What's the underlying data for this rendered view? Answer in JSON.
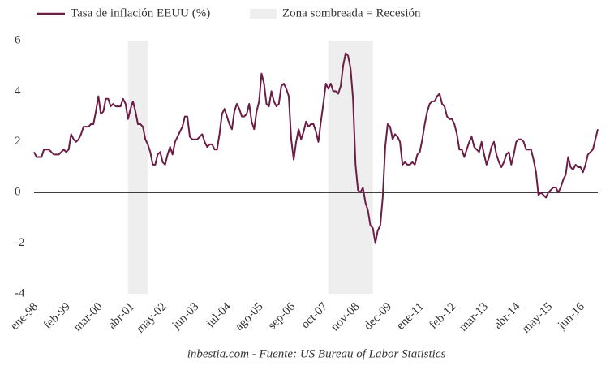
{
  "chart_data": {
    "type": "line",
    "source": "inbestia.com - Fuente: US Bureau of Labor Statistics",
    "shaded_label": "Zona sombreada = Recesión",
    "shade_color": "#eeeeee",
    "shaded_ranges": [
      [
        38,
        46
      ],
      [
        119,
        137
      ]
    ],
    "categories": [
      "ene-98",
      null,
      null,
      null,
      null,
      null,
      null,
      null,
      null,
      null,
      null,
      null,
      null,
      "feb-99",
      null,
      null,
      null,
      null,
      null,
      null,
      null,
      null,
      null,
      null,
      null,
      null,
      "mar-00",
      null,
      null,
      null,
      null,
      null,
      null,
      null,
      null,
      null,
      null,
      null,
      null,
      "abr-01",
      null,
      null,
      null,
      null,
      null,
      null,
      null,
      null,
      null,
      null,
      null,
      null,
      "may-02",
      null,
      null,
      null,
      null,
      null,
      null,
      null,
      null,
      null,
      null,
      null,
      null,
      "jun-03",
      null,
      null,
      null,
      null,
      null,
      null,
      null,
      null,
      null,
      null,
      null,
      null,
      "jul-04",
      null,
      null,
      null,
      null,
      null,
      null,
      null,
      null,
      null,
      null,
      null,
      null,
      "ago-05",
      null,
      null,
      null,
      null,
      null,
      null,
      null,
      null,
      null,
      null,
      null,
      null,
      "sep-06",
      null,
      null,
      null,
      null,
      null,
      null,
      null,
      null,
      null,
      null,
      null,
      null,
      "oct-07",
      null,
      null,
      null,
      null,
      null,
      null,
      null,
      null,
      null,
      null,
      null,
      null,
      "nov-08",
      null,
      null,
      null,
      null,
      null,
      null,
      null,
      null,
      null,
      null,
      null,
      null,
      "dec-09",
      null,
      null,
      null,
      null,
      null,
      null,
      null,
      null,
      null,
      null,
      null,
      null,
      "ene-11",
      null,
      null,
      null,
      null,
      null,
      null,
      null,
      null,
      null,
      null,
      null,
      null,
      "feb-12",
      null,
      null,
      null,
      null,
      null,
      null,
      null,
      null,
      null,
      null,
      null,
      null,
      "mar-13",
      null,
      null,
      null,
      null,
      null,
      null,
      null,
      null,
      null,
      null,
      null,
      null,
      "abr-14",
      null,
      null,
      null,
      null,
      null,
      null,
      null,
      null,
      null,
      null,
      null,
      null,
      "may-15",
      null,
      null,
      null,
      null,
      null,
      null,
      null,
      null,
      null,
      null,
      null,
      null,
      "jun-16",
      null,
      null,
      null,
      null,
      null,
      null,
      null
    ],
    "series": [
      {
        "name": "Tasa de inflación EEUU (%)",
        "color": "#6b1d45",
        "values": [
          1.6,
          1.4,
          1.4,
          1.4,
          1.7,
          1.7,
          1.7,
          1.6,
          1.5,
          1.5,
          1.5,
          1.6,
          1.7,
          1.6,
          1.7,
          2.3,
          2.1,
          2.0,
          2.1,
          2.3,
          2.6,
          2.6,
          2.6,
          2.7,
          2.7,
          3.2,
          3.8,
          3.1,
          3.2,
          3.7,
          3.7,
          3.4,
          3.5,
          3.4,
          3.4,
          3.4,
          3.7,
          3.5,
          2.9,
          3.3,
          3.6,
          3.2,
          2.7,
          2.7,
          2.6,
          2.1,
          1.9,
          1.6,
          1.1,
          1.1,
          1.5,
          1.6,
          1.2,
          1.1,
          1.5,
          1.8,
          1.5,
          2.0,
          2.2,
          2.4,
          2.6,
          3.0,
          3.0,
          2.2,
          2.1,
          2.1,
          2.1,
          2.2,
          2.3,
          2.0,
          1.8,
          1.9,
          1.9,
          1.7,
          1.7,
          2.3,
          3.1,
          3.3,
          3.0,
          2.7,
          2.5,
          3.2,
          3.5,
          3.3,
          3.0,
          3.0,
          3.1,
          3.5,
          2.8,
          2.5,
          3.2,
          3.6,
          4.7,
          4.3,
          3.5,
          3.4,
          4.0,
          3.6,
          3.4,
          3.5,
          4.2,
          4.3,
          4.1,
          3.8,
          2.1,
          1.3,
          2.0,
          2.5,
          2.1,
          2.4,
          2.8,
          2.6,
          2.7,
          2.7,
          2.4,
          2.0,
          2.8,
          3.5,
          4.3,
          4.1,
          4.3,
          4.0,
          4.0,
          3.9,
          4.2,
          5.0,
          5.5,
          5.4,
          4.9,
          3.7,
          1.1,
          0.1,
          0.0,
          0.2,
          -0.4,
          -0.7,
          -1.3,
          -1.4,
          -2.0,
          -1.5,
          -1.3,
          -0.2,
          1.8,
          2.7,
          2.6,
          2.1,
          2.3,
          2.2,
          2.0,
          1.1,
          1.2,
          1.1,
          1.1,
          1.2,
          1.1,
          1.5,
          1.6,
          2.1,
          2.7,
          3.2,
          3.5,
          3.6,
          3.6,
          3.8,
          3.9,
          3.5,
          3.4,
          3.0,
          2.9,
          2.9,
          2.7,
          2.3,
          1.7,
          1.7,
          1.4,
          1.7,
          2.0,
          2.2,
          1.8,
          1.7,
          1.6,
          2.0,
          1.5,
          1.1,
          1.4,
          1.8,
          2.0,
          1.5,
          1.2,
          1.0,
          1.2,
          1.5,
          1.6,
          1.1,
          1.5,
          2.0,
          2.1,
          2.1,
          2.0,
          1.7,
          1.7,
          1.7,
          1.3,
          0.8,
          -0.1,
          0.0,
          -0.1,
          -0.2,
          0.0,
          0.1,
          0.2,
          0.2,
          0.0,
          0.2,
          0.5,
          0.7,
          1.4,
          1.0,
          0.9,
          1.1,
          1.0,
          1.0,
          0.8,
          1.1,
          1.5,
          1.6,
          1.7,
          2.1,
          2.5
        ]
      }
    ],
    "ylim": [
      -4,
      6
    ],
    "yticks": [
      -4,
      -2,
      0,
      2,
      4,
      6
    ]
  }
}
